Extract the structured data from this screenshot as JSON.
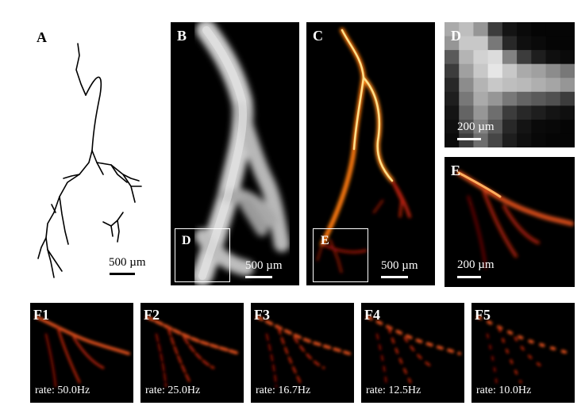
{
  "colors": {
    "background": "#ffffff",
    "panel_background": "#000000",
    "hot_core": "#ffe08a",
    "hot_mid": "#ff8a1a",
    "hot_edge": "#c0200a"
  },
  "panels": {
    "A": {
      "label": "A",
      "scale": "500 µm"
    },
    "B": {
      "label": "B",
      "scale": "500 µm",
      "inset_label": "D"
    },
    "C": {
      "label": "C",
      "scale": "500 µm",
      "inset_label": "E"
    },
    "D": {
      "label": "D",
      "scale": "200 µm"
    },
    "E": {
      "label": "E",
      "scale": "200 µm"
    }
  },
  "f_panels": [
    {
      "label": "F1",
      "rate": "rate: 50.0Hz"
    },
    {
      "label": "F2",
      "rate": "rate: 25.0Hz"
    },
    {
      "label": "F3",
      "rate": "rate: 16.7Hz"
    },
    {
      "label": "F4",
      "rate": "rate: 12.5Hz"
    },
    {
      "label": "F5",
      "rate": "rate: 10.0Hz"
    }
  ]
}
